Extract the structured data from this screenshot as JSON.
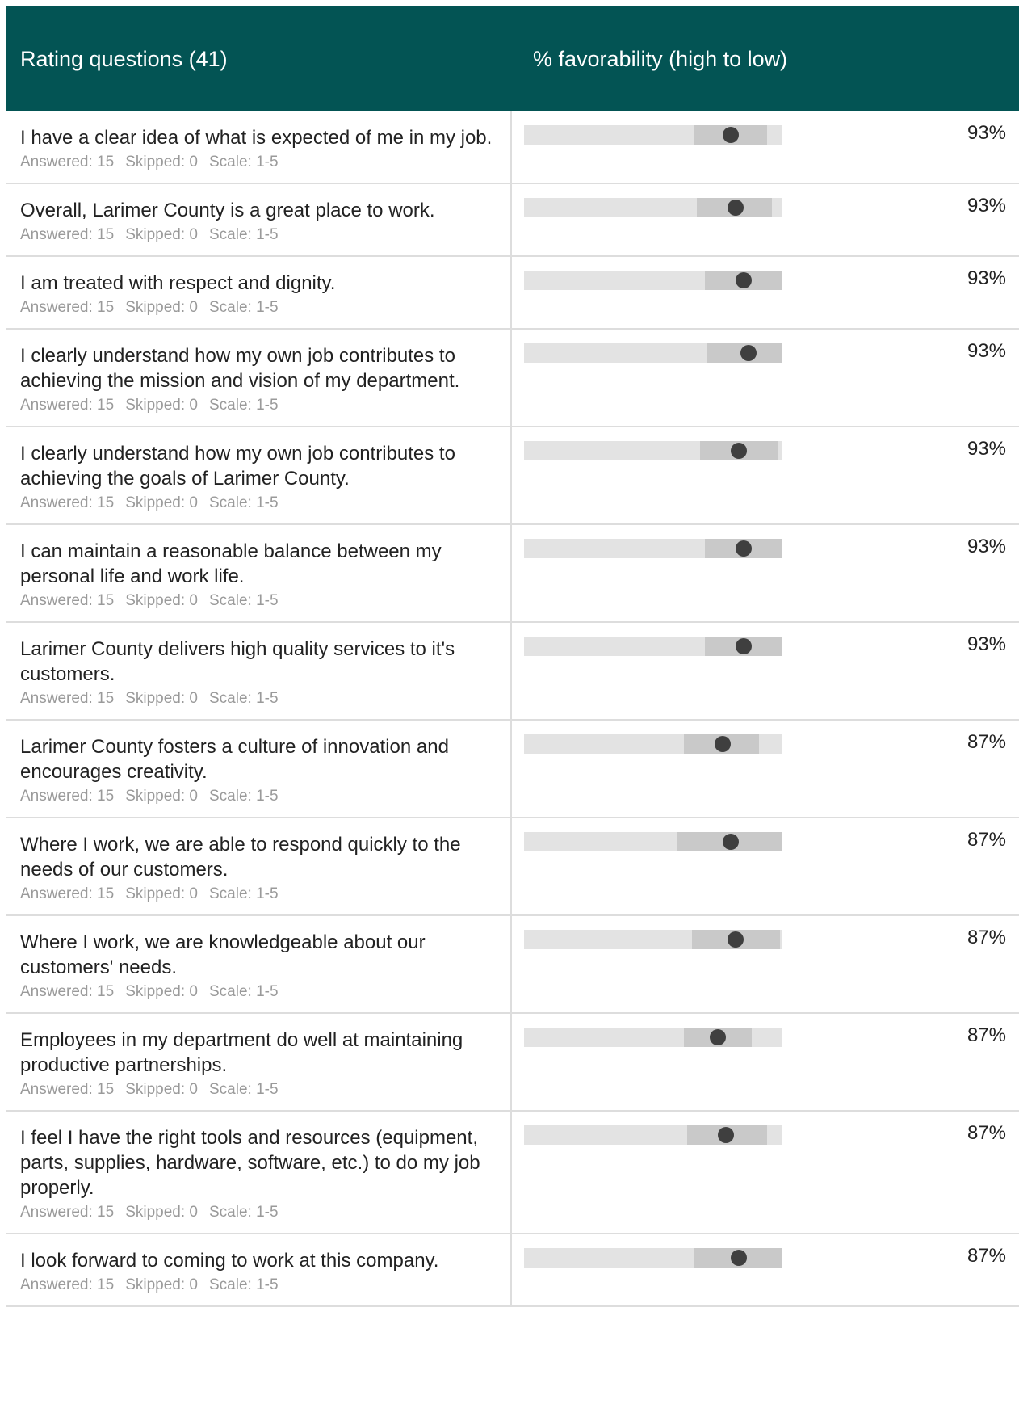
{
  "header": {
    "questions_label": "Rating questions (41)",
    "favorability_label": "% favorability (high to low)"
  },
  "colors": {
    "header_bg": "#035454",
    "track": "#e3e3e3",
    "band": "#c9c9c9",
    "dot": "#3f3f3f"
  },
  "questions": [
    {
      "text": "I have a clear idea of what is expected of me in my job.",
      "answered": "Answered: 15",
      "skipped": "Skipped: 0",
      "scale": "Scale: 1-5",
      "percent": "93%",
      "band": [
        0.66,
        0.94
      ],
      "score": 0.8
    },
    {
      "text": "Overall, Larimer County is a great place to work.",
      "answered": "Answered: 15",
      "skipped": "Skipped: 0",
      "scale": "Scale: 1-5",
      "percent": "93%",
      "band": [
        0.67,
        0.96
      ],
      "score": 0.82
    },
    {
      "text": "I am treated with respect and dignity.",
      "answered": "Answered: 15",
      "skipped": "Skipped: 0",
      "scale": "Scale: 1-5",
      "percent": "93%",
      "band": [
        0.7,
        1.0
      ],
      "score": 0.85
    },
    {
      "text": "I clearly understand how my own job contributes to achieving the mission and vision of my department.",
      "answered": "Answered: 15",
      "skipped": "Skipped: 0",
      "scale": "Scale: 1-5",
      "percent": "93%",
      "band": [
        0.71,
        1.0
      ],
      "score": 0.87
    },
    {
      "text": "I clearly understand how my own job contributes to achieving the goals of Larimer County.",
      "answered": "Answered: 15",
      "skipped": "Skipped: 0",
      "scale": "Scale: 1-5",
      "percent": "93%",
      "band": [
        0.68,
        0.98
      ],
      "score": 0.83
    },
    {
      "text": "I can maintain a reasonable balance between my personal life and work life.",
      "answered": "Answered: 15",
      "skipped": "Skipped: 0",
      "scale": "Scale: 1-5",
      "percent": "93%",
      "band": [
        0.7,
        1.0
      ],
      "score": 0.85
    },
    {
      "text": "Larimer County delivers high quality services to it's customers.",
      "answered": "Answered: 15",
      "skipped": "Skipped: 0",
      "scale": "Scale: 1-5",
      "percent": "93%",
      "band": [
        0.7,
        1.0
      ],
      "score": 0.85
    },
    {
      "text": "Larimer County fosters a culture of innovation and encourages creativity.",
      "answered": "Answered: 15",
      "skipped": "Skipped: 0",
      "scale": "Scale: 1-5",
      "percent": "87%",
      "band": [
        0.62,
        0.91
      ],
      "score": 0.77
    },
    {
      "text": "Where I work, we are able to respond quickly to the needs of our customers.",
      "answered": "Answered: 15",
      "skipped": "Skipped: 0",
      "scale": "Scale: 1-5",
      "percent": "87%",
      "band": [
        0.59,
        1.0
      ],
      "score": 0.8
    },
    {
      "text": "Where I work, we are knowledgeable about our customers' needs.",
      "answered": "Answered: 15",
      "skipped": "Skipped: 0",
      "scale": "Scale: 1-5",
      "percent": "87%",
      "band": [
        0.65,
        0.99
      ],
      "score": 0.82
    },
    {
      "text": "Employees in my department do well at maintaining productive partnerships.",
      "answered": "Answered: 15",
      "skipped": "Skipped: 0",
      "scale": "Scale: 1-5",
      "percent": "87%",
      "band": [
        0.62,
        0.88
      ],
      "score": 0.75
    },
    {
      "text": "I feel I have the right tools and resources (equipment, parts, supplies, hardware, software, etc.) to do my job properly.",
      "answered": "Answered: 15",
      "skipped": "Skipped: 0",
      "scale": "Scale: 1-5",
      "percent": "87%",
      "band": [
        0.63,
        0.94
      ],
      "score": 0.78
    },
    {
      "text": "I look forward to coming to work at this company.",
      "answered": "Answered: 15",
      "skipped": "Skipped: 0",
      "scale": "Scale: 1-5",
      "percent": "87%",
      "band": [
        0.66,
        1.0
      ],
      "score": 0.83
    }
  ]
}
